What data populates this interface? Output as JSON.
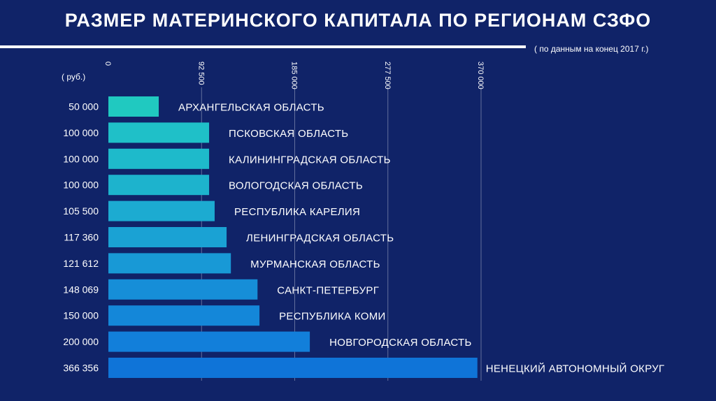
{
  "title": "РАЗМЕР МАТЕРИНСКОГО КАПИТАЛА ПО РЕГИОНАМ СЗФО",
  "subtitle": "( по данным на конец 2017 г.)",
  "unit": "( руб.)",
  "chart_data": {
    "type": "bar",
    "orientation": "horizontal",
    "title": "РАЗМЕР МАТЕРИНСКОГО КАПИТАЛА ПО РЕГИОНАМ СЗФО",
    "subtitle": "( по данным на конец 2017 г.)",
    "ylabel": "( руб.)",
    "xlim": [
      0,
      370000
    ],
    "ticks": [
      0,
      92500,
      185000,
      277500,
      370000
    ],
    "tick_labels": [
      "0",
      "92 500",
      "185 000",
      "277 500",
      "370 000"
    ],
    "categories": [
      "АРХАНГЕЛЬСКАЯ ОБЛАСТЬ",
      "ПСКОВСКАЯ ОБЛАСТЬ",
      "КАЛИНИНГРАДСКАЯ ОБЛАСТЬ",
      "ВОЛОГОДСКАЯ ОБЛАСТЬ",
      "РЕСПУБЛИКА КАРЕЛИЯ",
      "ЛЕНИНГРАДСКАЯ ОБЛАСТЬ",
      "МУРМАНСКАЯ ОБЛАСТЬ",
      "САНКТ-ПЕТЕРБУРГ",
      "РЕСПУБЛИКА КОМИ",
      "НОВГОРОДСКАЯ ОБЛАСТЬ",
      "НЕНЕЦКИЙ АВТОНОМНЫЙ ОКРУГ"
    ],
    "values": [
      50000,
      100000,
      100000,
      100000,
      105500,
      117360,
      121612,
      148069,
      150000,
      200000,
      366356
    ],
    "value_labels": [
      "50 000",
      "100 000",
      "100 000",
      "100 000",
      "105 500",
      "117 360",
      "121 612",
      "148 069",
      "150 000",
      "200 000",
      "366 356"
    ],
    "bar_colors": [
      "#20c9c0",
      "#1fc0c8",
      "#1ebacb",
      "#1db3cd",
      "#1cabd1",
      "#1aa2d4",
      "#1899d6",
      "#168ed8",
      "#1487d9",
      "#127fda",
      "#0f74d8"
    ]
  }
}
